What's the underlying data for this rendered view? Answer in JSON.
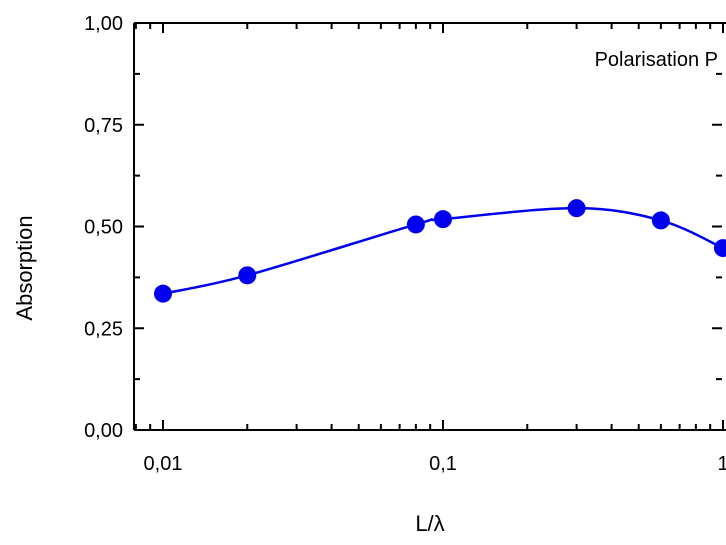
{
  "chart_data": {
    "type": "line",
    "title": "",
    "xlabel": "L/λ",
    "ylabel": "Absorption",
    "xscale": "log",
    "xlim": [
      0.008,
      1.0
    ],
    "ylim": [
      0.0,
      1.0
    ],
    "x_ticks": [
      {
        "value": 0.01,
        "label": "0,01"
      },
      {
        "value": 0.1,
        "label": "0,1"
      },
      {
        "value": 1,
        "label": "1"
      }
    ],
    "y_ticks": [
      {
        "value": 0.0,
        "label": "0,00"
      },
      {
        "value": 0.25,
        "label": "0,25"
      },
      {
        "value": 0.5,
        "label": "0,50"
      },
      {
        "value": 0.75,
        "label": "0,75"
      },
      {
        "value": 1.0,
        "label": "1,00"
      }
    ],
    "annotation": "Polarisation P",
    "grid": false,
    "series": [
      {
        "color": "#0000ee",
        "marker": "circle",
        "x": [
          0.01,
          0.02,
          0.08,
          0.1,
          0.3,
          0.6,
          1.0
        ],
        "y": [
          0.335,
          0.38,
          0.505,
          0.518,
          0.545,
          0.515,
          0.447
        ]
      }
    ]
  }
}
